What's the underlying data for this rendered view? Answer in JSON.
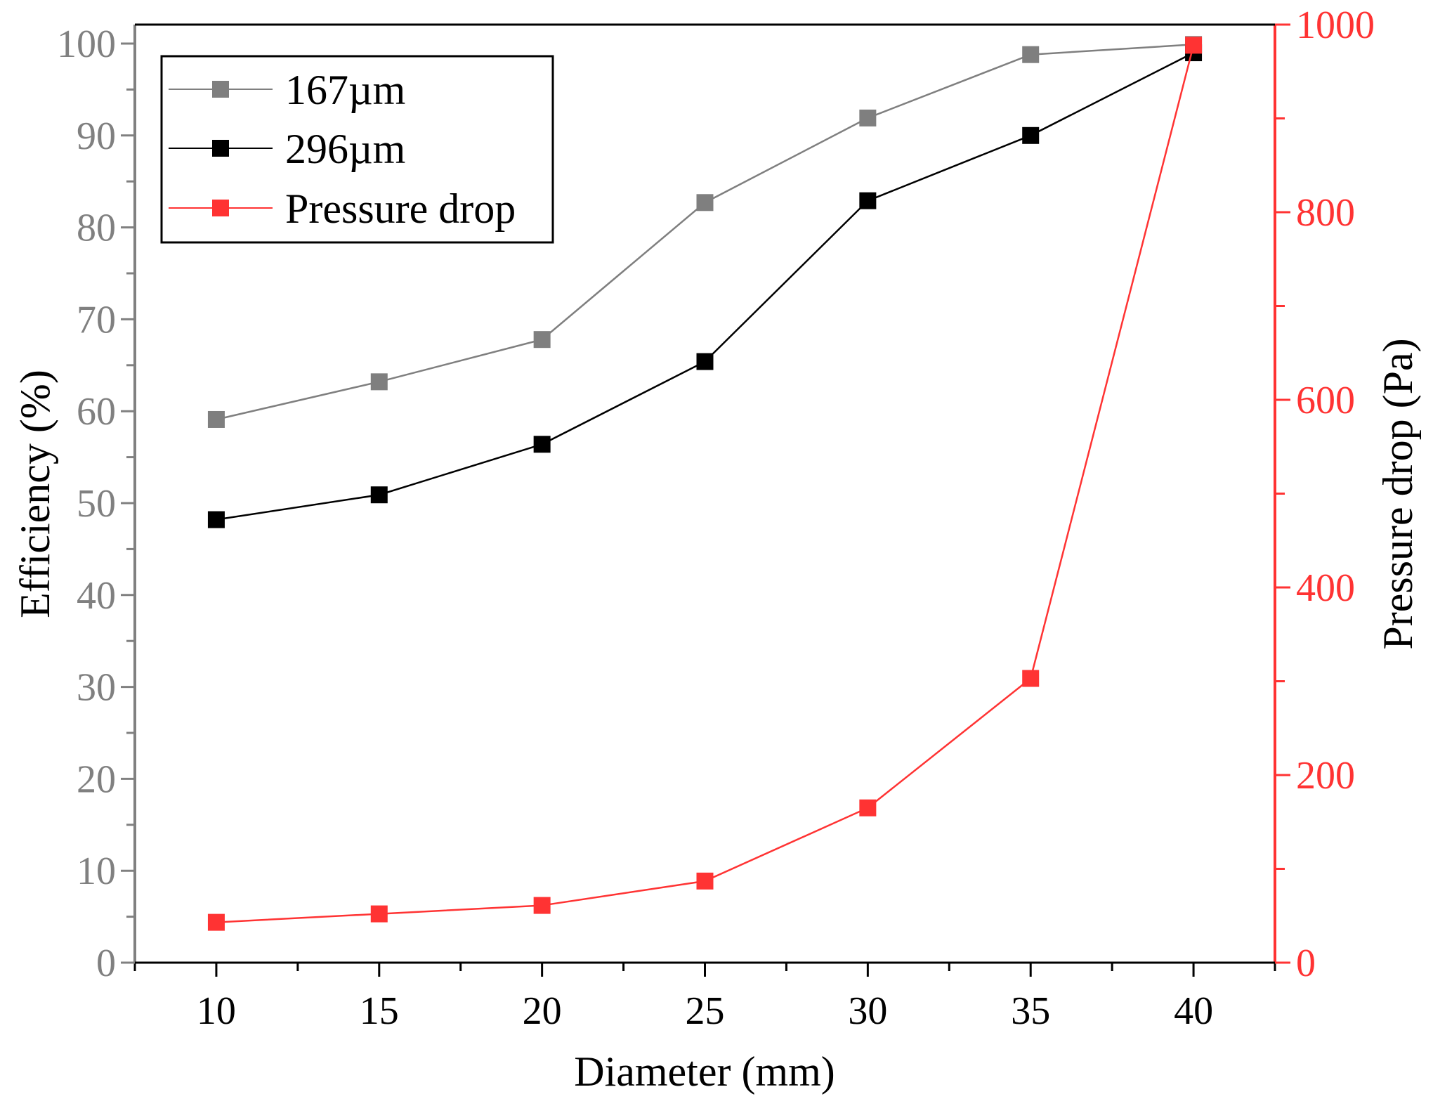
{
  "chart_data": {
    "type": "line",
    "x": [
      10,
      15,
      20,
      25,
      30,
      35,
      40
    ],
    "xlabel": "Diameter (mm)",
    "xlim": [
      7.5,
      42.5
    ],
    "xticks": [
      10,
      15,
      20,
      25,
      30,
      35,
      40
    ],
    "ylabel_left": "Efficiency (%)",
    "ylim_left": [
      0,
      100
    ],
    "yticks_left": [
      0,
      10,
      20,
      30,
      40,
      50,
      60,
      70,
      80,
      90,
      100
    ],
    "ylabel_right": "Pressure drop (Pa)",
    "ylim_right": [
      0,
      1000
    ],
    "yticks_right": [
      0,
      200,
      400,
      600,
      800,
      1000
    ],
    "series": [
      {
        "name": "167µm",
        "axis": "left",
        "color": "#7f7f7f",
        "values": [
          59.1,
          63.2,
          67.8,
          82.7,
          91.9,
          98.8,
          99.9
        ]
      },
      {
        "name": "296µm",
        "axis": "left",
        "color": "#000000",
        "values": [
          48.2,
          50.9,
          56.4,
          65.4,
          82.9,
          90.0,
          99.0
        ]
      },
      {
        "name": "Pressure drop",
        "axis": "right",
        "color": "#ff3333",
        "values": [
          43,
          52,
          61,
          87,
          165,
          303,
          978
        ]
      }
    ],
    "colors": {
      "left_axis": "#808080",
      "right_axis": "#ff3333",
      "frame": "#000000"
    },
    "legend_position": "top-left",
    "grid": false
  }
}
